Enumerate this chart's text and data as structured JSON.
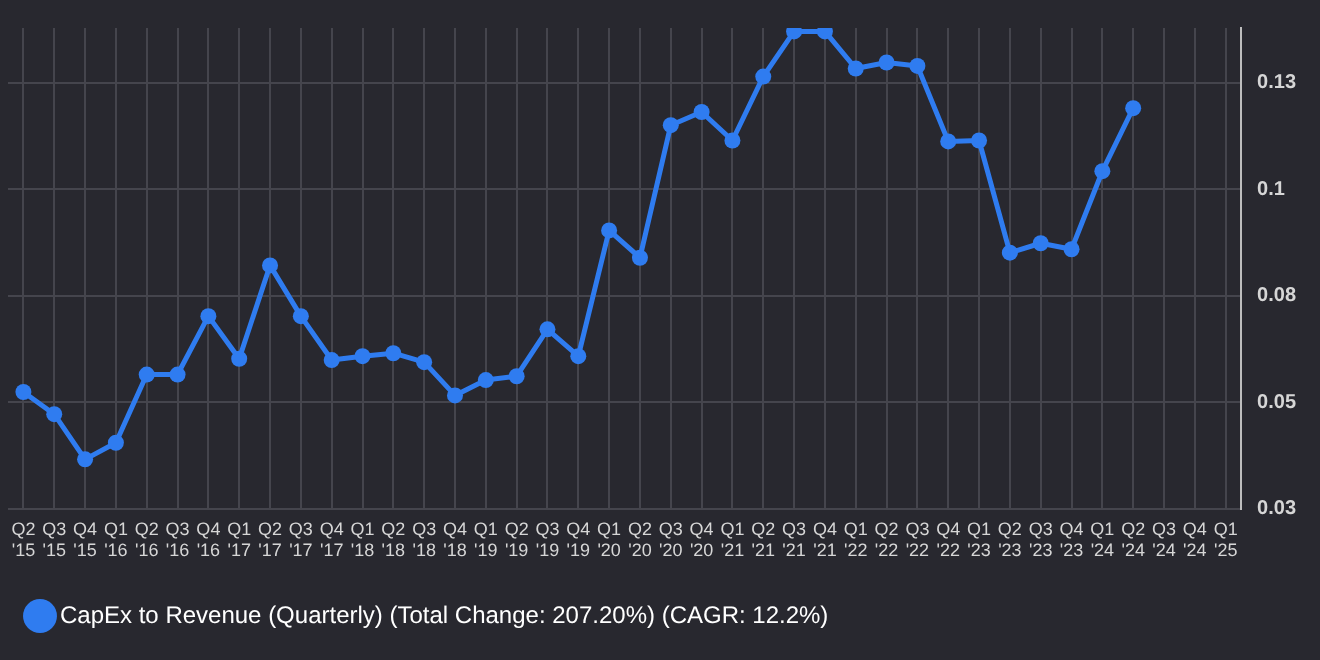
{
  "chart_data": {
    "type": "line",
    "categories": [
      "Q2\n'15",
      "Q3\n'15",
      "Q4\n'15",
      "Q1\n'16",
      "Q2\n'16",
      "Q3\n'16",
      "Q4\n'16",
      "Q1\n'17",
      "Q2\n'17",
      "Q3\n'17",
      "Q4\n'17",
      "Q1\n'18",
      "Q2\n'18",
      "Q3\n'18",
      "Q4\n'18",
      "Q1\n'19",
      "Q2\n'19",
      "Q3\n'19",
      "Q4\n'19",
      "Q1\n'20",
      "Q2\n'20",
      "Q3\n'20",
      "Q4\n'20",
      "Q1\n'21",
      "Q2\n'21",
      "Q3\n'21",
      "Q4\n'21",
      "Q1\n'22",
      "Q2\n'22",
      "Q3\n'22",
      "Q4\n'22",
      "Q1\n'23",
      "Q2\n'23",
      "Q3\n'23",
      "Q4\n'23",
      "Q1\n'24",
      "Q2\n'24",
      "Q3\n'24",
      "Q4\n'24",
      "Q1\n'25"
    ],
    "series": [
      {
        "name": "CapEx to Revenue (Quarterly) (Total Change: 207.20%) (CAGR: 12.2%)",
        "color": "#2f7cf0",
        "values": [
          0.0524,
          0.0472,
          0.0366,
          0.0405,
          0.0565,
          0.0565,
          0.0702,
          0.0602,
          0.0821,
          0.0702,
          0.0599,
          0.0608,
          0.0615,
          0.0594,
          0.0516,
          0.0552,
          0.0561,
          0.0671,
          0.0608,
          0.0903,
          0.0839,
          0.115,
          0.1181,
          0.1114,
          0.1264,
          0.137,
          0.137,
          0.1283,
          0.1297,
          0.1289,
          0.1112,
          0.1114,
          0.0851,
          0.0873,
          0.0859,
          0.1042,
          0.119,
          null,
          null,
          null
        ]
      }
    ],
    "ylim": [
      0.025,
      0.1378
    ],
    "yticks": [
      {
        "value": 0.025,
        "label": "0.03"
      },
      {
        "value": 0.05,
        "label": "0.05"
      },
      {
        "value": 0.075,
        "label": "0.08"
      },
      {
        "value": 0.1,
        "label": "0.1"
      },
      {
        "value": 0.125,
        "label": "0.13"
      }
    ],
    "grid": true,
    "legend": "bottom left",
    "marker": "circle",
    "line_style": "solid"
  }
}
